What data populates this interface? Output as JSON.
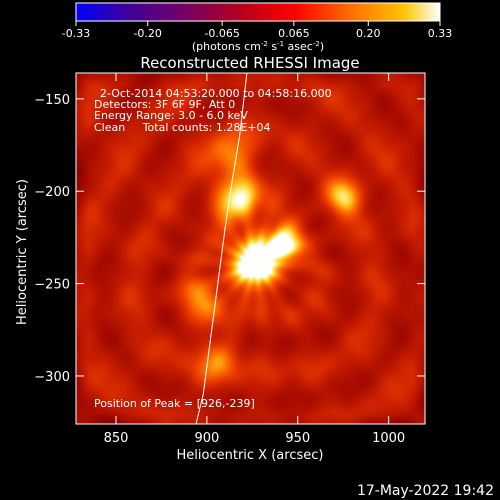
{
  "colorbar": {
    "tick_labels": [
      "-0.33",
      "-0.20",
      "-0.065",
      "0.065",
      "0.20",
      "0.33"
    ],
    "tick_values": [
      -0.33,
      -0.2,
      -0.065,
      0.065,
      0.2,
      0.33
    ],
    "range": [
      -0.33,
      0.33
    ],
    "units_prefix": "(photons cm",
    "units_exp1": "-2",
    "units_mid": " s",
    "units_exp2": "-1",
    "units_mid2": " asec",
    "units_exp3": "-2",
    "units_suffix": ")"
  },
  "title": "Reconstructed RHESSI Image",
  "annotation": {
    "time_range": "2-Oct-2014 04:53:20.000 to 04:58:16.000",
    "detectors": "Detectors: 3F 6F 9F, Att 0",
    "energy": "Energy Range: 3.0 - 6.0 keV",
    "method": "Clean     Total counts: 1.28E+04",
    "peak": "Position of Peak = [926,-239]"
  },
  "x_axis": {
    "label": "Heliocentric X (arcsec)",
    "range": [
      828,
      1020
    ],
    "ticks": [
      850,
      900,
      950,
      1000
    ],
    "tick_labels": [
      "850",
      "900",
      "950",
      "1000"
    ]
  },
  "y_axis": {
    "label": "Heliocentric Y (arcsec)",
    "range": [
      -326,
      -136
    ],
    "ticks": [
      -150,
      -200,
      -250,
      -300
    ],
    "tick_labels": [
      "−150",
      "−200",
      "−250",
      "−300"
    ]
  },
  "peak": {
    "x": 926,
    "y": -239
  },
  "limb": [
    [
      922,
      -136
    ],
    [
      918,
      -170
    ],
    [
      913,
      -200
    ],
    [
      910,
      -220
    ],
    [
      906,
      -250
    ],
    [
      902,
      -280
    ],
    [
      898,
      -310
    ],
    [
      894,
      -326
    ]
  ],
  "sources": [
    {
      "x": 926,
      "y": -239,
      "amp": 1.0,
      "sigma": 10
    },
    {
      "x": 942,
      "y": -228,
      "amp": 0.72,
      "sigma": 7
    },
    {
      "x": 917,
      "y": -205,
      "amp": 0.62,
      "sigma": 9
    },
    {
      "x": 976,
      "y": -203,
      "amp": 0.55,
      "sigma": 7
    },
    {
      "x": 913,
      "y": -182,
      "amp": 0.45,
      "sigma": 9
    },
    {
      "x": 898,
      "y": -258,
      "amp": 0.4,
      "sigma": 8
    },
    {
      "x": 905,
      "y": -290,
      "amp": 0.36,
      "sigma": 9
    }
  ],
  "colors": {
    "colormap": [
      "#0000ff",
      "#3f009a",
      "#6e006d",
      "#b3001d",
      "#ff0000",
      "#ff6a00",
      "#ffc400",
      "#ffffff"
    ],
    "background": "#000000",
    "foreground": "#ffffff"
  },
  "timestamp": "17-May-2022 19:42"
}
